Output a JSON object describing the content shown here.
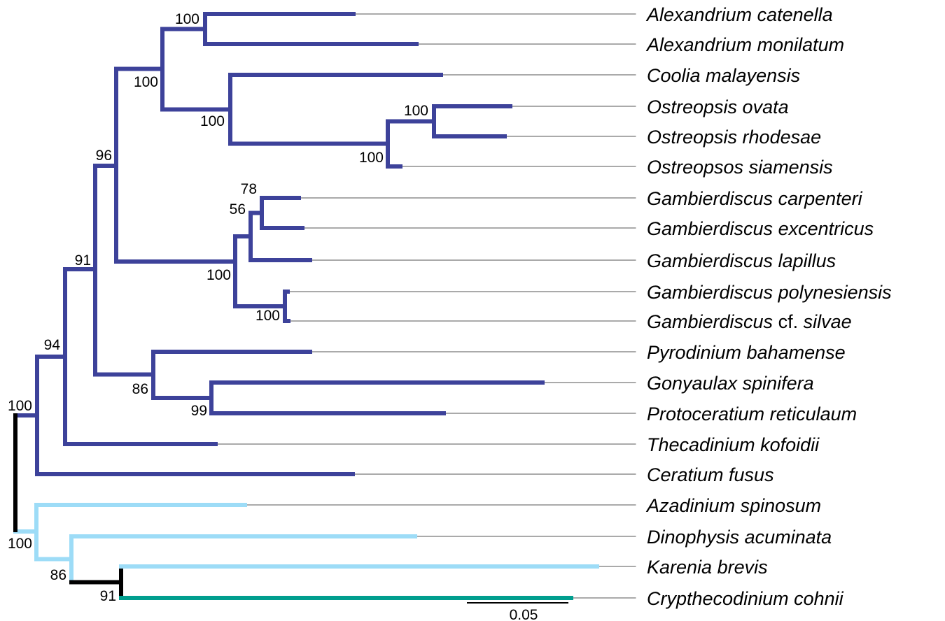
{
  "colors": {
    "clade_main": "#3d429a",
    "clade_light": "#9ddcf7",
    "clade_teal": "#009e8e",
    "root": "#000000",
    "leader": "#555555"
  },
  "taxa": [
    {
      "genus": "Alexandrium",
      "rest": "catenella"
    },
    {
      "genus": "Alexandrium",
      "rest": "monilatum"
    },
    {
      "genus": "Coolia",
      "rest": "malayensis"
    },
    {
      "genus": "Ostreopsis",
      "rest": "ovata"
    },
    {
      "genus": "Ostreopsis",
      "rest": "rhodesae"
    },
    {
      "genus": "Ostreopsos",
      "rest": "siamensis"
    },
    {
      "genus": "Gambierdiscus",
      "rest": "carpenteri"
    },
    {
      "genus": "Gambierdiscus",
      "rest": "excentricus"
    },
    {
      "genus": "Gambierdiscus",
      "rest": "lapillus"
    },
    {
      "genus": "Gambierdiscus",
      "rest": "polynesiensis"
    },
    {
      "genus": "Gambierdiscus",
      "qualifier": "cf.",
      "rest": "silvae"
    },
    {
      "genus": "Pyrodinium",
      "rest": "bahamense"
    },
    {
      "genus": "Gonyaulax",
      "rest": "spinifera"
    },
    {
      "genus": "Protoceratium",
      "rest": "reticulaum"
    },
    {
      "genus": "Thecadinium",
      "rest": "kofoidii"
    },
    {
      "genus": "Ceratium",
      "rest": "fusus"
    },
    {
      "genus": "Azadinium",
      "rest": "spinosum"
    },
    {
      "genus": "Dinophysis",
      "rest": "acuminata"
    },
    {
      "genus": "Karenia",
      "rest": "brevis"
    },
    {
      "genus": "Crypthecodinium",
      "rest": "cohnii"
    }
  ],
  "support_values": [
    "100",
    "100",
    "100",
    "100",
    "100",
    "96",
    "78",
    "56",
    "100",
    "100",
    "91",
    "86",
    "99",
    "94",
    "100",
    "100",
    "86",
    "91"
  ],
  "scale_bar": {
    "label": "0.05",
    "value": 0.05
  }
}
